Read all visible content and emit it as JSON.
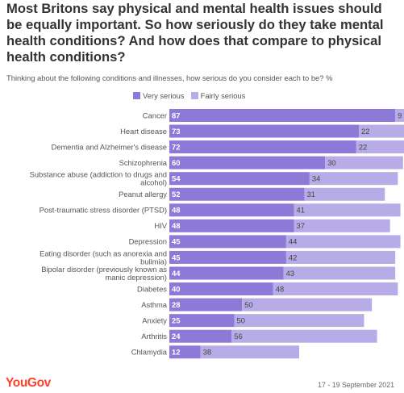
{
  "header": {
    "title": "Most Britons say physical and mental health issues should be equally important. So how seriously do they take mental health conditions? And how does that compare to physical health conditions?",
    "subtitle": "Thinking about the following conditions and illnesses, how serious do you consider each to be? %"
  },
  "footer": {
    "logo_text": "YouGov",
    "date": "17 - 19 September 2021"
  },
  "colors": {
    "very_serious": "#8d7ad8",
    "fairly_serious": "#b7ace8",
    "logo": "#ff412c"
  },
  "chart_data": {
    "type": "bar",
    "orientation": "horizontal",
    "stacked": true,
    "legend_position": "top",
    "grid": false,
    "xlim": [
      0,
      100
    ],
    "categories": [
      [
        "Cancer"
      ],
      [
        "Heart disease"
      ],
      [
        "Dementia and Alzheimer's disease"
      ],
      [
        "Schizophrenia"
      ],
      [
        "Substance abuse (addiction to drugs and",
        "alcohol)"
      ],
      [
        "Peanut allergy"
      ],
      [
        "Post-traumatic stress disorder (PTSD)"
      ],
      [
        "HIV"
      ],
      [
        "Depression"
      ],
      [
        "Eating disorder (such as anorexia and",
        "bulimia)"
      ],
      [
        "Bipolar disorder (previously known as",
        "manic depression)"
      ],
      [
        "Diabetes"
      ],
      [
        "Asthma"
      ],
      [
        "Anxiety"
      ],
      [
        "Arthritis"
      ],
      [
        "Chlamydia"
      ]
    ],
    "series": [
      {
        "name": "Very serious",
        "values": [
          87,
          73,
          72,
          60,
          54,
          52,
          48,
          48,
          45,
          45,
          44,
          40,
          28,
          25,
          24,
          12
        ]
      },
      {
        "name": "Fairly serious",
        "values": [
          9,
          22,
          22,
          30,
          34,
          31,
          41,
          37,
          44,
          42,
          43,
          48,
          50,
          50,
          56,
          38
        ]
      }
    ]
  }
}
